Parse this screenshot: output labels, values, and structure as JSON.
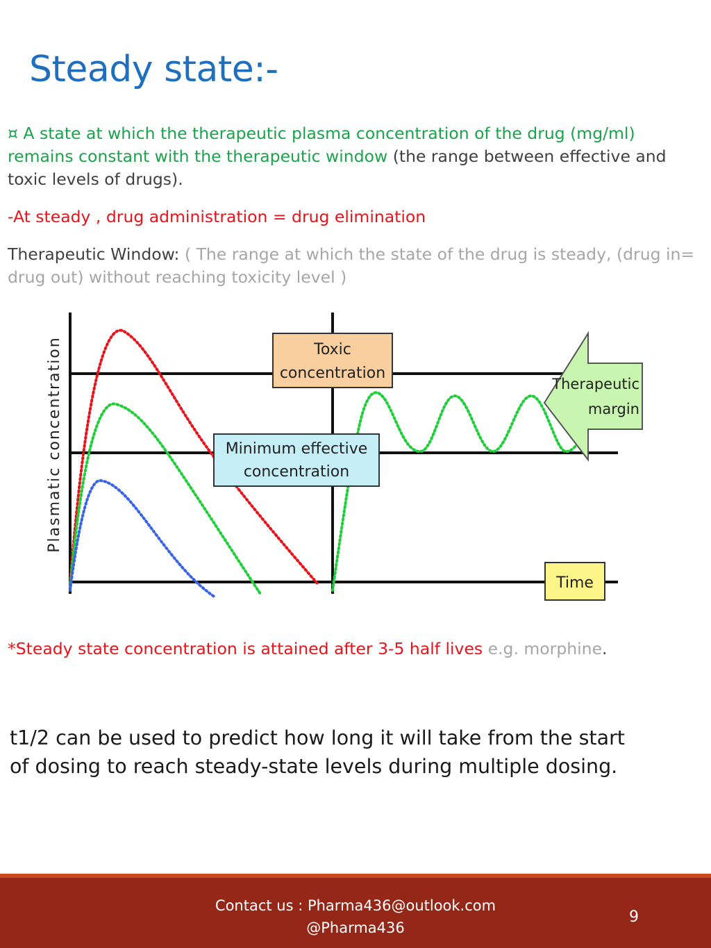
{
  "slide": {
    "title": "Steady state:-",
    "definition": {
      "bullet": "¤",
      "green_text": " A state at which the therapeutic plasma concentration of the drug (mg/ml) remains constant with the therapeutic window",
      "dark_text": " (the range between effective and toxic levels of drugs)."
    },
    "rule": "-At steady , drug administration = drug elimination",
    "window": {
      "label": "Therapeutic Window:",
      "text": " ( The range at which the state of the drug is steady, (drug in= drug out) without reaching toxicity level )"
    },
    "diagram": {
      "y_axis_label": "Plasmatic concentration",
      "toxic_label_1": "Toxic",
      "toxic_label_2": "concentration",
      "mec_label_1": "Minimum effective",
      "mec_label_2": "concentration",
      "margin_label_1": "Therapeutic",
      "margin_label_2": "margin",
      "time_label": "Time",
      "colors": {
        "toxic_box": "#f9cfa0",
        "mec_box": "#c5eef6",
        "time_box": "#fdf58a",
        "arrow": "#c8f5b0",
        "red_curve": "#e8141b",
        "green_curve": "#1fcf3a",
        "blue_curve": "#3a64e8"
      }
    },
    "steady_note": {
      "red_text": "*Steady state concentration is attained after 3-5 half lives",
      "gray_text": "  e.g. morphine",
      "end": "."
    },
    "half_life_text": "t1/2 can be used to predict how long it will take from the start of dosing to reach steady-state levels during multiple dosing.",
    "footer": {
      "contact_line_1": "Contact us : Pharma436@outlook.com",
      "contact_line_2": "@Pharma436",
      "page_number": "9"
    }
  }
}
